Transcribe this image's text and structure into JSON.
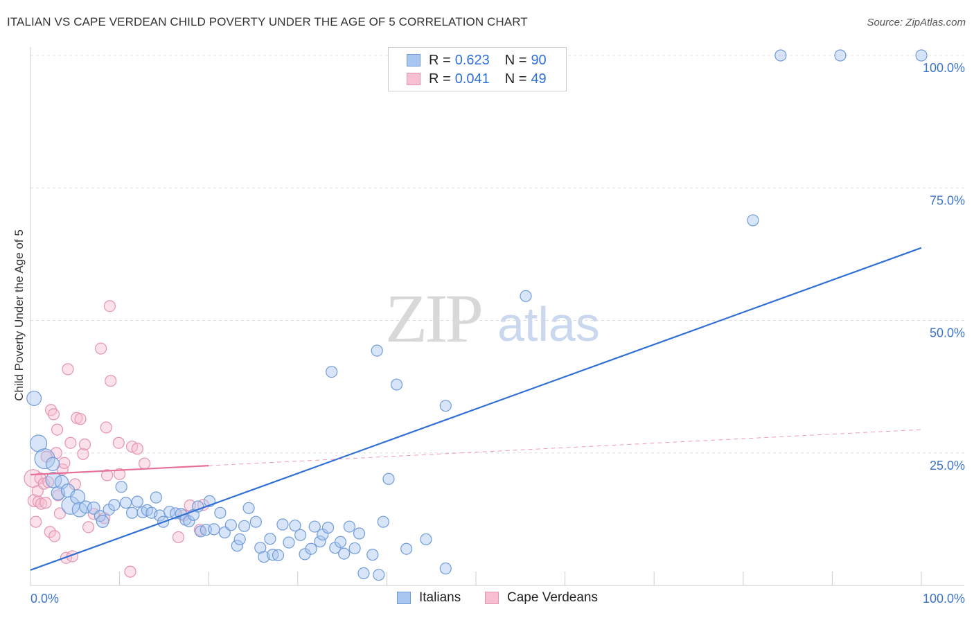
{
  "title": "ITALIAN VS CAPE VERDEAN CHILD POVERTY UNDER THE AGE OF 5 CORRELATION CHART",
  "source": "Source: ZipAtlas.com",
  "watermark": {
    "zip": "ZIP",
    "atlas": "atlas"
  },
  "legend_top": [
    {
      "r_label": "R =",
      "r_value": "0.623",
      "n_label": "N =",
      "n_value": "90",
      "color": "#a9c6f0",
      "border": "#6f9bd8"
    },
    {
      "r_label": "R =",
      "r_value": "0.041",
      "n_label": "N =",
      "n_value": "49",
      "color": "#f7bfd1",
      "border": "#e493b0"
    }
  ],
  "legend_bottom": [
    {
      "label": "Italians",
      "color": "#a9c6f0",
      "border": "#6f9bd8"
    },
    {
      "label": "Cape Verdeans",
      "color": "#f7bfd1",
      "border": "#e493b0"
    }
  ],
  "chart_data": {
    "type": "scatter",
    "title": "ITALIAN VS CAPE VERDEAN CHILD POVERTY UNDER THE AGE OF 5 CORRELATION CHART",
    "xlabel": "",
    "ylabel": "Child Poverty Under the Age of 5",
    "xlim": [
      0,
      100
    ],
    "ylim": [
      0,
      100
    ],
    "x_tick_labels": [
      {
        "value": 0,
        "label": "0.0%"
      },
      {
        "value": 100,
        "label": "100.0%"
      }
    ],
    "y_tick_labels": [
      {
        "value": 25,
        "label": "25.0%"
      },
      {
        "value": 50,
        "label": "50.0%"
      },
      {
        "value": 75,
        "label": "75.0%"
      },
      {
        "value": 100,
        "label": "100.0%"
      }
    ],
    "series": [
      {
        "name": "Italians",
        "color": "#a9c6f0",
        "stroke": "#6f9bd8",
        "trend": {
          "x0": 0,
          "y0": 2.9,
          "x1": 100,
          "y1": 63.7,
          "color": "#2f6fd6",
          "dashed_extension": false
        },
        "points": [
          [
            0.4,
            35.3,
            1.3
          ],
          [
            0.9,
            26.8,
            1.5
          ],
          [
            1.6,
            23.9,
            1.8
          ],
          [
            2.5,
            22.9,
            1.2
          ],
          [
            2.6,
            19.9,
            1.4
          ],
          [
            3.1,
            17.4,
            1.2
          ],
          [
            3.5,
            19.5,
            1.2
          ],
          [
            4.2,
            17.9,
            1.2
          ],
          [
            4.5,
            15.1,
            1.6
          ],
          [
            5.3,
            16.7,
            1.3
          ],
          [
            5.5,
            14.3,
            1.3
          ],
          [
            6.2,
            14.8,
            1.1
          ],
          [
            7.1,
            14.6,
            1.1
          ],
          [
            7.8,
            13.1,
            1.0
          ],
          [
            8.1,
            12.1,
            1.1
          ],
          [
            8.8,
            14.3,
            1.0
          ],
          [
            9.4,
            15.2,
            1.0
          ],
          [
            10.2,
            18.6,
            1.0
          ],
          [
            10.7,
            15.6,
            1.0
          ],
          [
            11.4,
            13.7,
            1.0
          ],
          [
            12.0,
            15.8,
            1.0
          ],
          [
            12.6,
            13.8,
            1.0
          ],
          [
            13.1,
            14.2,
            1.0
          ],
          [
            13.6,
            13.7,
            1.0
          ],
          [
            14.1,
            16.6,
            1.0
          ],
          [
            14.5,
            13.2,
            1.0
          ],
          [
            14.9,
            12.0,
            1.0
          ],
          [
            15.6,
            13.9,
            1.0
          ],
          [
            16.3,
            13.6,
            1.0
          ],
          [
            16.9,
            13.5,
            1.0
          ],
          [
            17.4,
            12.4,
            1.0
          ],
          [
            17.8,
            12.1,
            1.0
          ],
          [
            18.3,
            13.3,
            1.0
          ],
          [
            18.8,
            14.9,
            1.0
          ],
          [
            19.1,
            10.2,
            1.0
          ],
          [
            19.7,
            10.5,
            1.0
          ],
          [
            20.1,
            15.9,
            1.0
          ],
          [
            20.6,
            10.6,
            1.0
          ],
          [
            21.3,
            13.7,
            1.0
          ],
          [
            21.8,
            10.0,
            1.0
          ],
          [
            22.5,
            11.4,
            1.0
          ],
          [
            23.2,
            7.5,
            1.0
          ],
          [
            23.5,
            8.7,
            1.0
          ],
          [
            24.0,
            11.2,
            1.0
          ],
          [
            24.5,
            14.6,
            1.0
          ],
          [
            25.3,
            12.0,
            1.0
          ],
          [
            25.8,
            7.1,
            1.0
          ],
          [
            26.2,
            5.4,
            1.0
          ],
          [
            26.9,
            8.8,
            1.0
          ],
          [
            27.2,
            5.8,
            1.0
          ],
          [
            27.8,
            5.7,
            1.0
          ],
          [
            28.3,
            11.5,
            1.0
          ],
          [
            29.0,
            8.1,
            1.0
          ],
          [
            29.7,
            11.3,
            1.0
          ],
          [
            30.3,
            9.5,
            1.0
          ],
          [
            30.8,
            5.9,
            1.0
          ],
          [
            31.5,
            6.9,
            1.0
          ],
          [
            31.9,
            11.1,
            1.0
          ],
          [
            32.5,
            8.3,
            1.0
          ],
          [
            32.8,
            9.6,
            1.0
          ],
          [
            33.4,
            10.9,
            1.0
          ],
          [
            33.8,
            40.3,
            1.0
          ],
          [
            34.2,
            7.1,
            1.0
          ],
          [
            34.8,
            8.2,
            1.0
          ],
          [
            35.2,
            6.0,
            1.0
          ],
          [
            35.8,
            11.1,
            1.0
          ],
          [
            36.4,
            7.0,
            1.0
          ],
          [
            36.9,
            9.8,
            1.0
          ],
          [
            37.4,
            2.3,
            1.0
          ],
          [
            38.4,
            5.8,
            1.0
          ],
          [
            38.9,
            44.3,
            1.0
          ],
          [
            39.1,
            2.0,
            1.0
          ],
          [
            39.6,
            12.0,
            1.0
          ],
          [
            40.2,
            20.1,
            1.0
          ],
          [
            41.1,
            37.9,
            1.0
          ],
          [
            42.2,
            6.9,
            1.0
          ],
          [
            44.4,
            8.7,
            1.0
          ],
          [
            46.6,
            33.9,
            1.0
          ],
          [
            46.6,
            3.2,
            1.0
          ],
          [
            55.6,
            54.6,
            1.0
          ],
          [
            81.1,
            68.9,
            1.0
          ],
          [
            84.2,
            100.0,
            1.0
          ],
          [
            90.9,
            100.0,
            1.0
          ],
          [
            100.0,
            100.0,
            1.0
          ]
        ]
      },
      {
        "name": "Cape Verdeans",
        "color": "#f7bfd1",
        "stroke": "#e493b0",
        "trend": {
          "x0": 0,
          "y0": 20.9,
          "x1": 20,
          "y1": 22.6,
          "dash_x1": 100,
          "dash_y1": 29.4,
          "color": "#e86f9a",
          "dashed_extension": true
        },
        "points": [
          [
            0.3,
            20.2,
            1.6
          ],
          [
            0.4,
            16.0,
            1.1
          ],
          [
            0.6,
            12.0,
            1.0
          ],
          [
            0.8,
            17.8,
            1.0
          ],
          [
            0.9,
            15.8,
            1.0
          ],
          [
            1.1,
            20.2,
            1.0
          ],
          [
            1.2,
            15.4,
            1.0
          ],
          [
            1.5,
            19.2,
            1.0
          ],
          [
            1.7,
            15.6,
            1.0
          ],
          [
            1.8,
            24.3,
            1.0
          ],
          [
            2.0,
            19.5,
            1.0
          ],
          [
            2.2,
            10.1,
            1.0
          ],
          [
            2.3,
            33.1,
            1.0
          ],
          [
            2.6,
            32.3,
            1.0
          ],
          [
            2.7,
            9.3,
            1.0
          ],
          [
            2.9,
            25.0,
            1.0
          ],
          [
            3.0,
            29.4,
            1.0
          ],
          [
            3.1,
            17.0,
            1.0
          ],
          [
            3.3,
            13.6,
            1.0
          ],
          [
            3.6,
            21.9,
            1.0
          ],
          [
            3.8,
            23.1,
            1.0
          ],
          [
            4.0,
            5.2,
            1.0
          ],
          [
            4.2,
            40.8,
            1.0
          ],
          [
            4.5,
            26.9,
            1.0
          ],
          [
            4.7,
            5.5,
            1.0
          ],
          [
            5.0,
            19.1,
            1.0
          ],
          [
            5.2,
            31.6,
            1.0
          ],
          [
            5.6,
            31.4,
            1.0
          ],
          [
            5.9,
            24.8,
            1.0
          ],
          [
            6.1,
            26.6,
            1.0
          ],
          [
            6.5,
            11.0,
            1.0
          ],
          [
            7.1,
            13.5,
            1.0
          ],
          [
            7.9,
            44.7,
            1.0
          ],
          [
            8.3,
            12.7,
            1.0
          ],
          [
            8.5,
            29.8,
            1.0
          ],
          [
            8.6,
            20.8,
            1.0
          ],
          [
            8.9,
            52.7,
            1.0
          ],
          [
            9.0,
            38.6,
            1.0
          ],
          [
            9.9,
            26.9,
            1.0
          ],
          [
            10.0,
            21.0,
            1.0
          ],
          [
            11.2,
            2.6,
            1.0
          ],
          [
            11.4,
            26.2,
            1.0
          ],
          [
            12.0,
            25.8,
            1.0
          ],
          [
            12.8,
            23.0,
            1.0
          ],
          [
            16.6,
            9.1,
            1.0
          ],
          [
            17.2,
            13.2,
            1.0
          ],
          [
            17.9,
            15.1,
            1.0
          ],
          [
            19.0,
            10.5,
            1.0
          ],
          [
            19.4,
            15.2,
            1.0
          ]
        ]
      }
    ]
  }
}
